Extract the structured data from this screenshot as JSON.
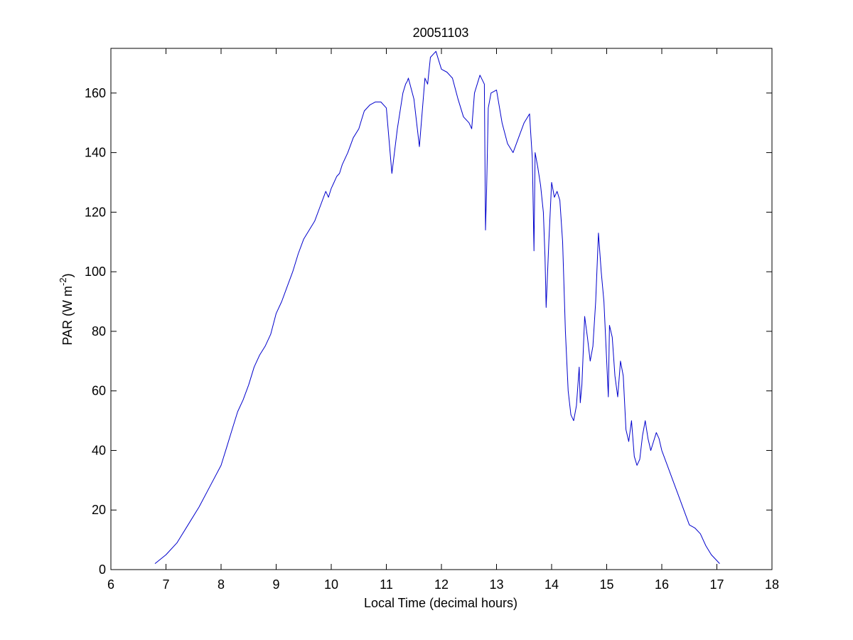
{
  "chart_data": {
    "type": "line",
    "title": "20051103",
    "xlabel": "Local Time (decimal hours)",
    "ylabel_main": "PAR (W m",
    "ylabel_sup": "-2",
    "ylabel_close": ")",
    "xlim": [
      6,
      18
    ],
    "ylim": [
      0,
      175
    ],
    "xticks": [
      6,
      7,
      8,
      9,
      10,
      11,
      12,
      13,
      14,
      15,
      16,
      17,
      18
    ],
    "yticks": [
      0,
      20,
      40,
      60,
      80,
      100,
      120,
      140,
      160
    ],
    "grid": false,
    "line_color": "#0000cc",
    "series": [
      {
        "x": [
          6.8,
          7.0,
          7.2,
          7.4,
          7.6,
          7.8,
          8.0,
          8.1,
          8.2,
          8.3,
          8.4,
          8.5,
          8.6,
          8.7,
          8.8,
          8.9,
          9.0,
          9.1,
          9.2,
          9.3,
          9.4,
          9.5,
          9.6,
          9.7,
          9.8,
          9.9,
          9.95,
          10.0,
          10.05,
          10.1,
          10.15,
          10.2,
          10.3,
          10.4,
          10.5,
          10.55,
          10.6,
          10.7,
          10.8,
          10.9,
          11.0,
          11.1,
          11.2,
          11.3,
          11.35,
          11.38,
          11.4,
          11.5,
          11.6,
          11.7,
          11.75,
          11.8,
          11.9,
          11.95,
          12.0,
          12.1,
          12.2,
          12.3,
          12.4,
          12.5,
          12.55,
          12.6,
          12.7,
          12.78,
          12.8,
          12.82,
          12.85,
          12.9,
          13.0,
          13.1,
          13.2,
          13.3,
          13.4,
          13.5,
          13.6,
          13.62,
          13.65,
          13.68,
          13.7,
          13.75,
          13.8,
          13.85,
          13.88,
          13.9,
          13.95,
          14.0,
          14.05,
          14.1,
          14.15,
          14.2,
          14.25,
          14.3,
          14.35,
          14.4,
          14.45,
          14.5,
          14.52,
          14.55,
          14.6,
          14.65,
          14.7,
          14.75,
          14.8,
          14.85,
          14.9,
          14.95,
          15.0,
          15.03,
          15.05,
          15.1,
          15.15,
          15.2,
          15.25,
          15.3,
          15.35,
          15.4,
          15.45,
          15.5,
          15.55,
          15.6,
          15.65,
          15.7,
          15.75,
          15.8,
          15.85,
          15.9,
          15.95,
          16.0,
          16.1,
          16.2,
          16.3,
          16.4,
          16.5,
          16.6,
          16.7,
          16.8,
          16.9,
          17.0,
          17.05
        ],
        "y": [
          2,
          5,
          9,
          15,
          21,
          28,
          35,
          41,
          47,
          53,
          57,
          62,
          68,
          72,
          75,
          79,
          86,
          90,
          95,
          100,
          106,
          111,
          114,
          117,
          122,
          127,
          125,
          128,
          130,
          132,
          133,
          136,
          140,
          145,
          148,
          151,
          154,
          156,
          157,
          157,
          155,
          133,
          148,
          160,
          163,
          164,
          165,
          158,
          142,
          165,
          163,
          172,
          174,
          171,
          168,
          167,
          165,
          158,
          152,
          150,
          148,
          160,
          166,
          163,
          114,
          128,
          155,
          160,
          161,
          150,
          143,
          140,
          145,
          150,
          153,
          147,
          138,
          107,
          140,
          135,
          129,
          120,
          105,
          88,
          110,
          130,
          125,
          127,
          124,
          110,
          80,
          60,
          52,
          50,
          55,
          68,
          56,
          62,
          85,
          78,
          70,
          75,
          90,
          113,
          100,
          90,
          70,
          58,
          82,
          78,
          65,
          58,
          70,
          65,
          47,
          43,
          50,
          38,
          35,
          37,
          45,
          50,
          44,
          40,
          43,
          46,
          44,
          40,
          35,
          30,
          25,
          20,
          15,
          14,
          12,
          8,
          5,
          3,
          2
        ]
      }
    ]
  }
}
